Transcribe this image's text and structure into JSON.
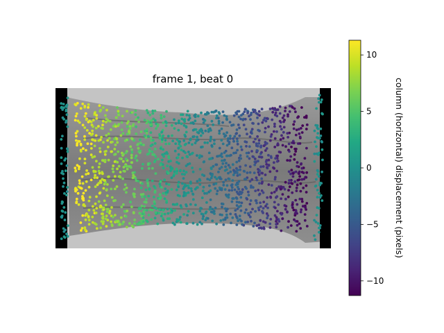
{
  "chart_data": {
    "type": "scatter",
    "title": "frame 1, beat 0",
    "colorbar": {
      "label": "column (horizontal) displacement (pixels)",
      "colormap": "viridis",
      "range": [
        -11.3,
        11.3
      ],
      "ticks": [
        10,
        5,
        0,
        -5,
        -10
      ],
      "tick_labels": [
        "10",
        "5",
        "0",
        "−5",
        "−10"
      ]
    },
    "background": {
      "description_kind": "grayscale microscopy tissue image",
      "image_extent_x": [
        0,
        396
      ],
      "image_extent_y": [
        0,
        230
      ]
    },
    "scatter_summary": {
      "approx_point_count": 1500,
      "color_trend": "displacement decreases from about +11 at left edge to about -11 at right edge; points at extreme left and right walls are near 0"
    },
    "grid": false,
    "axes_visible": false
  }
}
